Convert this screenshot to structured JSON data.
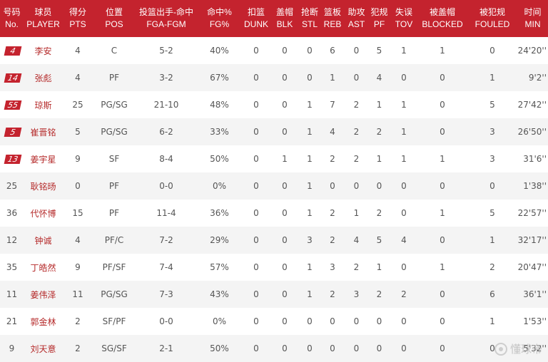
{
  "header": [
    {
      "zh": "号码",
      "en": "No."
    },
    {
      "zh": "球员",
      "en": "PLAYER"
    },
    {
      "zh": "得分",
      "en": "PTS"
    },
    {
      "zh": "位置",
      "en": "POS"
    },
    {
      "zh": "投篮出手-命中",
      "en": "FGA-FGM"
    },
    {
      "zh": "命中%",
      "en": "FG%"
    },
    {
      "zh": "扣篮",
      "en": "DUNK"
    },
    {
      "zh": "盖帽",
      "en": "BLK"
    },
    {
      "zh": "抢断",
      "en": "STL"
    },
    {
      "zh": "篮板",
      "en": "REB"
    },
    {
      "zh": "助攻",
      "en": "AST"
    },
    {
      "zh": "犯规",
      "en": "PF"
    },
    {
      "zh": "失误",
      "en": "TOV"
    },
    {
      "zh": "被盖帽",
      "en": "BLOCKED"
    },
    {
      "zh": "被犯规",
      "en": "FOULED"
    },
    {
      "zh": "时间",
      "en": "MIN"
    }
  ],
  "rows": [
    {
      "no": "4",
      "starter": true,
      "player": "李安",
      "pts": "4",
      "pos": "C",
      "fga_fgm": "5-2",
      "fg_pct": "40%",
      "dunk": "0",
      "blk": "0",
      "stl": "0",
      "reb": "6",
      "ast": "0",
      "pf": "5",
      "tov": "1",
      "blocked": "1",
      "fouled": "0",
      "min": "24'20''"
    },
    {
      "no": "14",
      "starter": true,
      "player": "张彪",
      "pts": "4",
      "pos": "PF",
      "fga_fgm": "3-2",
      "fg_pct": "67%",
      "dunk": "0",
      "blk": "0",
      "stl": "0",
      "reb": "1",
      "ast": "0",
      "pf": "4",
      "tov": "0",
      "blocked": "0",
      "fouled": "1",
      "min": "9'2''"
    },
    {
      "no": "55",
      "starter": true,
      "player": "琼斯",
      "pts": "25",
      "pos": "PG/SG",
      "fga_fgm": "21-10",
      "fg_pct": "48%",
      "dunk": "0",
      "blk": "0",
      "stl": "1",
      "reb": "7",
      "ast": "2",
      "pf": "1",
      "tov": "1",
      "blocked": "0",
      "fouled": "5",
      "min": "27'42''"
    },
    {
      "no": "5",
      "starter": true,
      "player": "崔晋铭",
      "pts": "5",
      "pos": "PG/SG",
      "fga_fgm": "6-2",
      "fg_pct": "33%",
      "dunk": "0",
      "blk": "0",
      "stl": "1",
      "reb": "4",
      "ast": "2",
      "pf": "2",
      "tov": "1",
      "blocked": "0",
      "fouled": "3",
      "min": "26'50''"
    },
    {
      "no": "13",
      "starter": true,
      "player": "姜宇星",
      "pts": "9",
      "pos": "SF",
      "fga_fgm": "8-4",
      "fg_pct": "50%",
      "dunk": "0",
      "blk": "1",
      "stl": "1",
      "reb": "2",
      "ast": "2",
      "pf": "1",
      "tov": "1",
      "blocked": "1",
      "fouled": "3",
      "min": "31'6''"
    },
    {
      "no": "25",
      "starter": false,
      "player": "耿铭旸",
      "pts": "0",
      "pos": "PF",
      "fga_fgm": "0-0",
      "fg_pct": "0%",
      "dunk": "0",
      "blk": "0",
      "stl": "1",
      "reb": "0",
      "ast": "0",
      "pf": "0",
      "tov": "0",
      "blocked": "0",
      "fouled": "0",
      "min": "1'38''"
    },
    {
      "no": "36",
      "starter": false,
      "player": "代怀博",
      "pts": "15",
      "pos": "PF",
      "fga_fgm": "11-4",
      "fg_pct": "36%",
      "dunk": "0",
      "blk": "0",
      "stl": "1",
      "reb": "2",
      "ast": "1",
      "pf": "2",
      "tov": "0",
      "blocked": "1",
      "fouled": "5",
      "min": "22'57''"
    },
    {
      "no": "12",
      "starter": false,
      "player": "钟诚",
      "pts": "4",
      "pos": "PF/C",
      "fga_fgm": "7-2",
      "fg_pct": "29%",
      "dunk": "0",
      "blk": "0",
      "stl": "3",
      "reb": "2",
      "ast": "4",
      "pf": "5",
      "tov": "4",
      "blocked": "0",
      "fouled": "1",
      "min": "32'17''"
    },
    {
      "no": "35",
      "starter": false,
      "player": "丁皓然",
      "pts": "9",
      "pos": "PF/SF",
      "fga_fgm": "7-4",
      "fg_pct": "57%",
      "dunk": "0",
      "blk": "0",
      "stl": "1",
      "reb": "3",
      "ast": "2",
      "pf": "1",
      "tov": "0",
      "blocked": "1",
      "fouled": "2",
      "min": "20'47''"
    },
    {
      "no": "11",
      "starter": false,
      "player": "姜伟泽",
      "pts": "11",
      "pos": "PG/SG",
      "fga_fgm": "7-3",
      "fg_pct": "43%",
      "dunk": "0",
      "blk": "0",
      "stl": "1",
      "reb": "2",
      "ast": "3",
      "pf": "2",
      "tov": "2",
      "blocked": "0",
      "fouled": "6",
      "min": "36'1''"
    },
    {
      "no": "21",
      "starter": false,
      "player": "郭金林",
      "pts": "2",
      "pos": "SF/PF",
      "fga_fgm": "0-0",
      "fg_pct": "0%",
      "dunk": "0",
      "blk": "0",
      "stl": "0",
      "reb": "0",
      "ast": "0",
      "pf": "0",
      "tov": "0",
      "blocked": "0",
      "fouled": "1",
      "min": "1'53''"
    },
    {
      "no": "9",
      "starter": false,
      "player": "刘天意",
      "pts": "2",
      "pos": "SG/SF",
      "fga_fgm": "2-1",
      "fg_pct": "50%",
      "dunk": "0",
      "blk": "0",
      "stl": "0",
      "reb": "0",
      "ast": "0",
      "pf": "0",
      "tov": "0",
      "blocked": "0",
      "fouled": "0",
      "min": "5'32''"
    }
  ],
  "watermark": {
    "text": "懂球帝",
    "icon": "app-logo-icon"
  },
  "colors": {
    "header_bg": "#c4232e",
    "badge_bg": "#c4232e",
    "name_text": "#b52a2a",
    "row_alt": "#f4f4f4"
  }
}
